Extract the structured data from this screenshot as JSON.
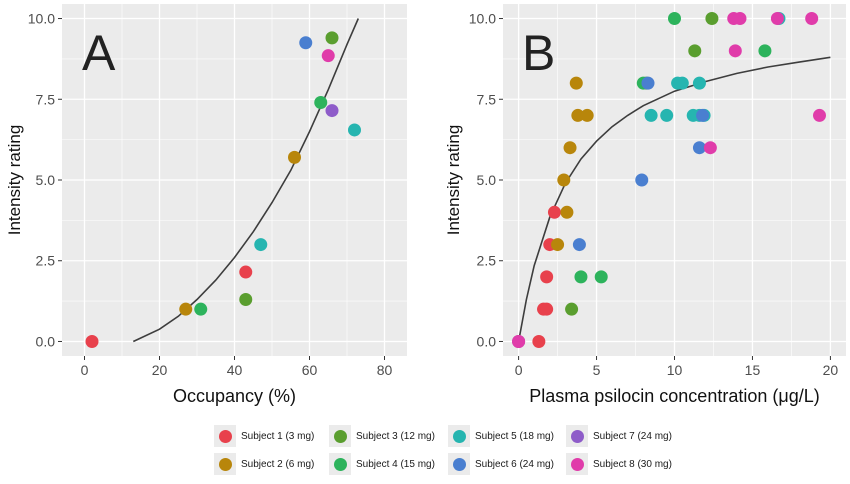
{
  "chart_data": [
    {
      "panel_label": "A",
      "type": "scatter",
      "xlabel": "Occupancy (%)",
      "ylabel": "Intensity rating",
      "xlim": [
        -6,
        86
      ],
      "ylim": [
        -0.45,
        10.45
      ],
      "xticks": [
        0,
        20,
        40,
        60,
        80
      ],
      "yticks": [
        0.0,
        2.5,
        5.0,
        7.5,
        10.0
      ],
      "xtick_labels": [
        "0",
        "20",
        "40",
        "60",
        "80"
      ],
      "ytick_labels": [
        "0.0",
        "2.5",
        "5.0",
        "7.5",
        "10.0"
      ],
      "grid": true,
      "fit_curve": {
        "type": "line",
        "x_range": [
          13,
          73
        ],
        "points": [
          [
            13,
            0.0
          ],
          [
            20,
            0.38
          ],
          [
            25,
            0.78
          ],
          [
            30,
            1.3
          ],
          [
            35,
            1.9
          ],
          [
            40,
            2.6
          ],
          [
            45,
            3.4
          ],
          [
            50,
            4.3
          ],
          [
            55,
            5.3
          ],
          [
            60,
            6.5
          ],
          [
            65,
            7.8
          ],
          [
            70,
            9.2
          ],
          [
            73,
            10.0
          ]
        ]
      },
      "series": [
        {
          "name": "Subject 1 (3 mg)",
          "points": [
            [
              2,
              0.0
            ],
            [
              43,
              2.15
            ]
          ]
        },
        {
          "name": "Subject 2 (6 mg)",
          "points": [
            [
              27,
              1.0
            ],
            [
              56,
              5.7
            ]
          ]
        },
        {
          "name": "Subject 3 (12 mg)",
          "points": [
            [
              43,
              1.3
            ],
            [
              66,
              9.4
            ]
          ]
        },
        {
          "name": "Subject 4 (15 mg)",
          "points": [
            [
              31,
              1.0
            ],
            [
              63,
              7.4
            ]
          ]
        },
        {
          "name": "Subject 5 (18 mg)",
          "points": [
            [
              47,
              3.0
            ],
            [
              72,
              6.55
            ]
          ]
        },
        {
          "name": "Subject 6 (24 mg)",
          "points": [
            [
              59,
              9.25
            ]
          ]
        },
        {
          "name": "Subject 7 (24 mg)",
          "points": [
            [
              66,
              7.15
            ]
          ]
        },
        {
          "name": "Subject 8 (30 mg)",
          "points": [
            [
              65,
              8.85
            ]
          ]
        }
      ]
    },
    {
      "panel_label": "B",
      "type": "scatter",
      "xlabel": "Plasma psilocin concentration (μg/L)",
      "ylabel": "Intensity rating",
      "xlim": [
        -1,
        21
      ],
      "ylim": [
        -0.45,
        10.45
      ],
      "xticks": [
        0,
        5,
        10,
        15,
        20
      ],
      "yticks": [
        0.0,
        2.5,
        5.0,
        7.5,
        10.0
      ],
      "xtick_labels": [
        "0",
        "5",
        "10",
        "15",
        "20"
      ],
      "ytick_labels": [
        "0.0",
        "2.5",
        "5.0",
        "7.5",
        "10.0"
      ],
      "grid": true,
      "fit_curve": {
        "type": "line",
        "x_range": [
          0,
          20
        ],
        "points": [
          [
            0,
            0.0
          ],
          [
            0.5,
            1.3
          ],
          [
            1,
            2.35
          ],
          [
            2,
            3.85
          ],
          [
            3,
            4.9
          ],
          [
            4,
            5.65
          ],
          [
            5,
            6.2
          ],
          [
            6,
            6.65
          ],
          [
            7,
            7.0
          ],
          [
            8,
            7.3
          ],
          [
            10,
            7.75
          ],
          [
            12,
            8.05
          ],
          [
            14,
            8.3
          ],
          [
            16,
            8.5
          ],
          [
            18,
            8.65
          ],
          [
            20,
            8.8
          ]
        ]
      },
      "series": [
        {
          "name": "Subject 1 (3 mg)",
          "points": [
            [
              0.0,
              0.0
            ],
            [
              1.3,
              0.0
            ],
            [
              1.6,
              1.0
            ],
            [
              1.8,
              1.0
            ],
            [
              1.8,
              2.0
            ],
            [
              2.0,
              3.0
            ],
            [
              2.3,
              4.0
            ]
          ]
        },
        {
          "name": "Subject 2 (6 mg)",
          "points": [
            [
              2.5,
              3.0
            ],
            [
              3.1,
              4.0
            ],
            [
              2.9,
              5.0
            ],
            [
              3.3,
              6.0
            ],
            [
              3.8,
              7.0
            ],
            [
              4.4,
              7.0
            ],
            [
              3.7,
              8.0
            ]
          ]
        },
        {
          "name": "Subject 3 (12 mg)",
          "points": [
            [
              3.4,
              1.0
            ],
            [
              8.2,
              8.0
            ],
            [
              11.3,
              9.0
            ],
            [
              12.4,
              10.0
            ]
          ]
        },
        {
          "name": "Subject 4 (15 mg)",
          "points": [
            [
              4.0,
              2.0
            ],
            [
              5.3,
              2.0
            ],
            [
              8.0,
              8.0
            ],
            [
              10.0,
              10.0
            ],
            [
              15.8,
              9.0
            ]
          ]
        },
        {
          "name": "Subject 5 (18 mg)",
          "points": [
            [
              8.5,
              7.0
            ],
            [
              9.5,
              7.0
            ],
            [
              10.2,
              8.0
            ],
            [
              10.5,
              8.0
            ],
            [
              11.6,
              8.0
            ],
            [
              11.2,
              7.0
            ],
            [
              11.6,
              7.0
            ],
            [
              11.9,
              7.0
            ],
            [
              16.7,
              10.0
            ]
          ]
        },
        {
          "name": "Subject 6 (24 mg)",
          "points": [
            [
              3.9,
              3.0
            ],
            [
              7.9,
              5.0
            ],
            [
              8.3,
              8.0
            ],
            [
              11.6,
              6.0
            ],
            [
              11.8,
              7.0
            ]
          ]
        },
        {
          "name": "Subject 7 (24 mg)",
          "points": [
            [
              0.0,
              0.0
            ]
          ]
        },
        {
          "name": "Subject 8 (30 mg)",
          "points": [
            [
              0.0,
              0.0
            ],
            [
              12.3,
              6.0
            ],
            [
              13.9,
              9.0
            ],
            [
              13.8,
              10.0
            ],
            [
              14.2,
              10.0
            ],
            [
              16.6,
              10.0
            ],
            [
              18.8,
              10.0
            ],
            [
              19.3,
              7.0
            ]
          ]
        }
      ]
    }
  ],
  "legend": {
    "items": [
      {
        "label": "Subject 1 (3 mg)",
        "color": "#E8414C"
      },
      {
        "label": "Subject 2 (6 mg)",
        "color": "#B8860B"
      },
      {
        "label": "Subject 3 (12 mg)",
        "color": "#5A9E2F"
      },
      {
        "label": "Subject 4 (15 mg)",
        "color": "#2DB35C"
      },
      {
        "label": "Subject 5 (18 mg)",
        "color": "#26B5B0"
      },
      {
        "label": "Subject 6 (24 mg)",
        "color": "#4A7FD0"
      },
      {
        "label": "Subject 7 (24 mg)",
        "color": "#8E5CC9"
      },
      {
        "label": "Subject 8 (30 mg)",
        "color": "#E03CAA"
      }
    ]
  },
  "colors": {
    "panel_bg": "#ebebeb",
    "grid": "#ffffff",
    "axis_text": "#4d4d4d",
    "curve": "#3d3d3d"
  }
}
